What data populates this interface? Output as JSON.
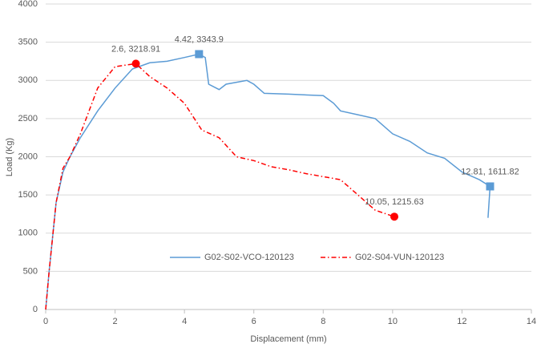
{
  "chart_data": {
    "type": "line",
    "x_label": "Displacement (mm)",
    "y_label": "Load (Kg)",
    "xlim": [
      0,
      14
    ],
    "xticks": [
      0,
      2,
      4,
      6,
      8,
      10,
      12,
      14
    ],
    "ylim": [
      0,
      4000
    ],
    "yticks": [
      0,
      500,
      1000,
      1500,
      2000,
      2500,
      3000,
      3500,
      4000
    ],
    "grid": true,
    "legend": "bottom",
    "series": [
      {
        "name": "G02-S02-VCO-120123",
        "color": "#5b9bd5",
        "dash": "solid",
        "marker": "square",
        "x": [
          0,
          0.1,
          0.3,
          0.5,
          0.7,
          1,
          1.5,
          2,
          2.5,
          3,
          3.5,
          4,
          4.42,
          4.6,
          4.7,
          5,
          5.2,
          5.8,
          6,
          6.3,
          7,
          8,
          8.3,
          8.5,
          9,
          9.5,
          10,
          10.5,
          11,
          11.5,
          12,
          12.5,
          12.81,
          12.75
        ],
        "values": [
          0,
          500,
          1400,
          1800,
          2000,
          2250,
          2600,
          2900,
          3150,
          3230,
          3250,
          3300,
          3343.9,
          3300,
          2950,
          2880,
          2950,
          3000,
          2950,
          2830,
          2820,
          2800,
          2700,
          2600,
          2550,
          2500,
          2300,
          2200,
          2050,
          1980,
          1800,
          1700,
          1611.82,
          1200
        ],
        "points": [
          {
            "x": 4.42,
            "y": 3343.9,
            "label": "4.42, 3343.9"
          },
          {
            "x": 12.81,
            "y": 1611.82,
            "label": "12.81, 1611.82"
          }
        ]
      },
      {
        "name": "G02-S04-VUN-120123",
        "color": "#ff0000",
        "dash": "dashdot",
        "marker": "circle",
        "x": [
          0,
          0.1,
          0.3,
          0.5,
          0.7,
          1,
          1.5,
          2,
          2.3,
          2.6,
          3,
          3.5,
          4,
          4.5,
          5,
          5.5,
          6,
          6.5,
          7,
          7.5,
          8,
          8.5,
          9,
          9.5,
          10.05
        ],
        "values": [
          0,
          500,
          1400,
          1850,
          2000,
          2300,
          2900,
          3180,
          3200,
          3218.91,
          3050,
          2900,
          2700,
          2350,
          2250,
          2000,
          1950,
          1870,
          1830,
          1780,
          1740,
          1700,
          1500,
          1300,
          1215.63
        ],
        "points": [
          {
            "x": 2.6,
            "y": 3218.91,
            "label": "2.6, 3218.91"
          },
          {
            "x": 10.05,
            "y": 1215.63,
            "label": "10.05, 1215.63"
          }
        ]
      }
    ]
  }
}
